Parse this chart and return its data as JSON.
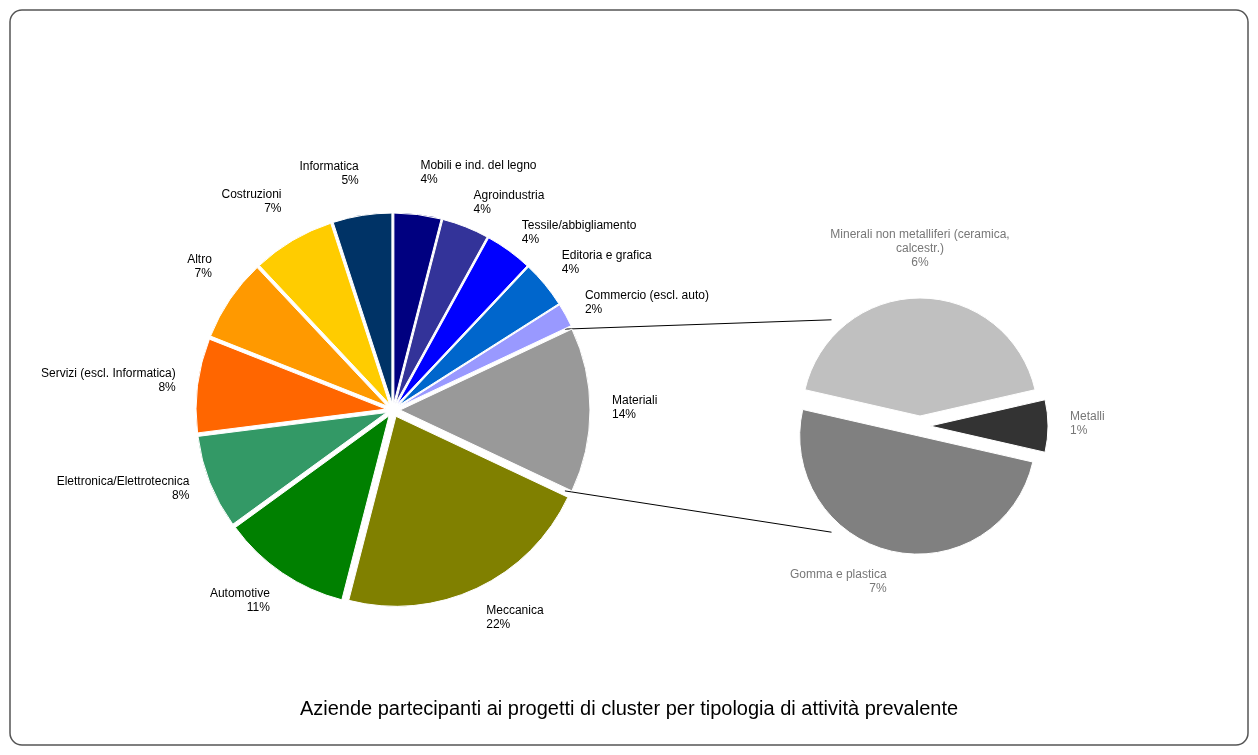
{
  "chart_data": [
    {
      "type": "pie",
      "title": "Aziende partecipanti ai progetti di cluster per tipologia di attività prevalente",
      "categories": [
        "Materiali",
        "Meccanica",
        "Automotive",
        "Elettronica/Elettrotecnica",
        "Servizi (escl. Informatica)",
        "Altro",
        "Costruzioni",
        "Informatica",
        "Mobili e ind. del legno",
        "Agroindustria",
        "Tessile/abbigliamento",
        "Editoria e grafica",
        "Commercio (escl. auto)"
      ],
      "values": [
        14,
        22,
        11,
        8,
        8,
        7,
        7,
        5,
        4,
        4,
        4,
        4,
        2
      ],
      "colors": [
        "#999999",
        "#808000",
        "#008000",
        "#339966",
        "#ff6600",
        "#ff9900",
        "#ffcc00",
        "#003366",
        "#000080",
        "#333399",
        "#0000ff",
        "#0066cc",
        "#9999ff"
      ],
      "value_labels": [
        "14%",
        "22%",
        "11%",
        "8%",
        "8%",
        "7%",
        "7%",
        "5%",
        "4%",
        "4%",
        "4%",
        "4%",
        "2%"
      ]
    },
    {
      "type": "pie",
      "categories": [
        "Metalli",
        "Gomma e plastica",
        "Minerali non metalliferi (ceramica, calcestr.)"
      ],
      "values": [
        1,
        7,
        6
      ],
      "colors": [
        "#333333",
        "#808080",
        "#c0c0c0"
      ],
      "value_labels": [
        "1%",
        "7%",
        "6%"
      ]
    }
  ]
}
